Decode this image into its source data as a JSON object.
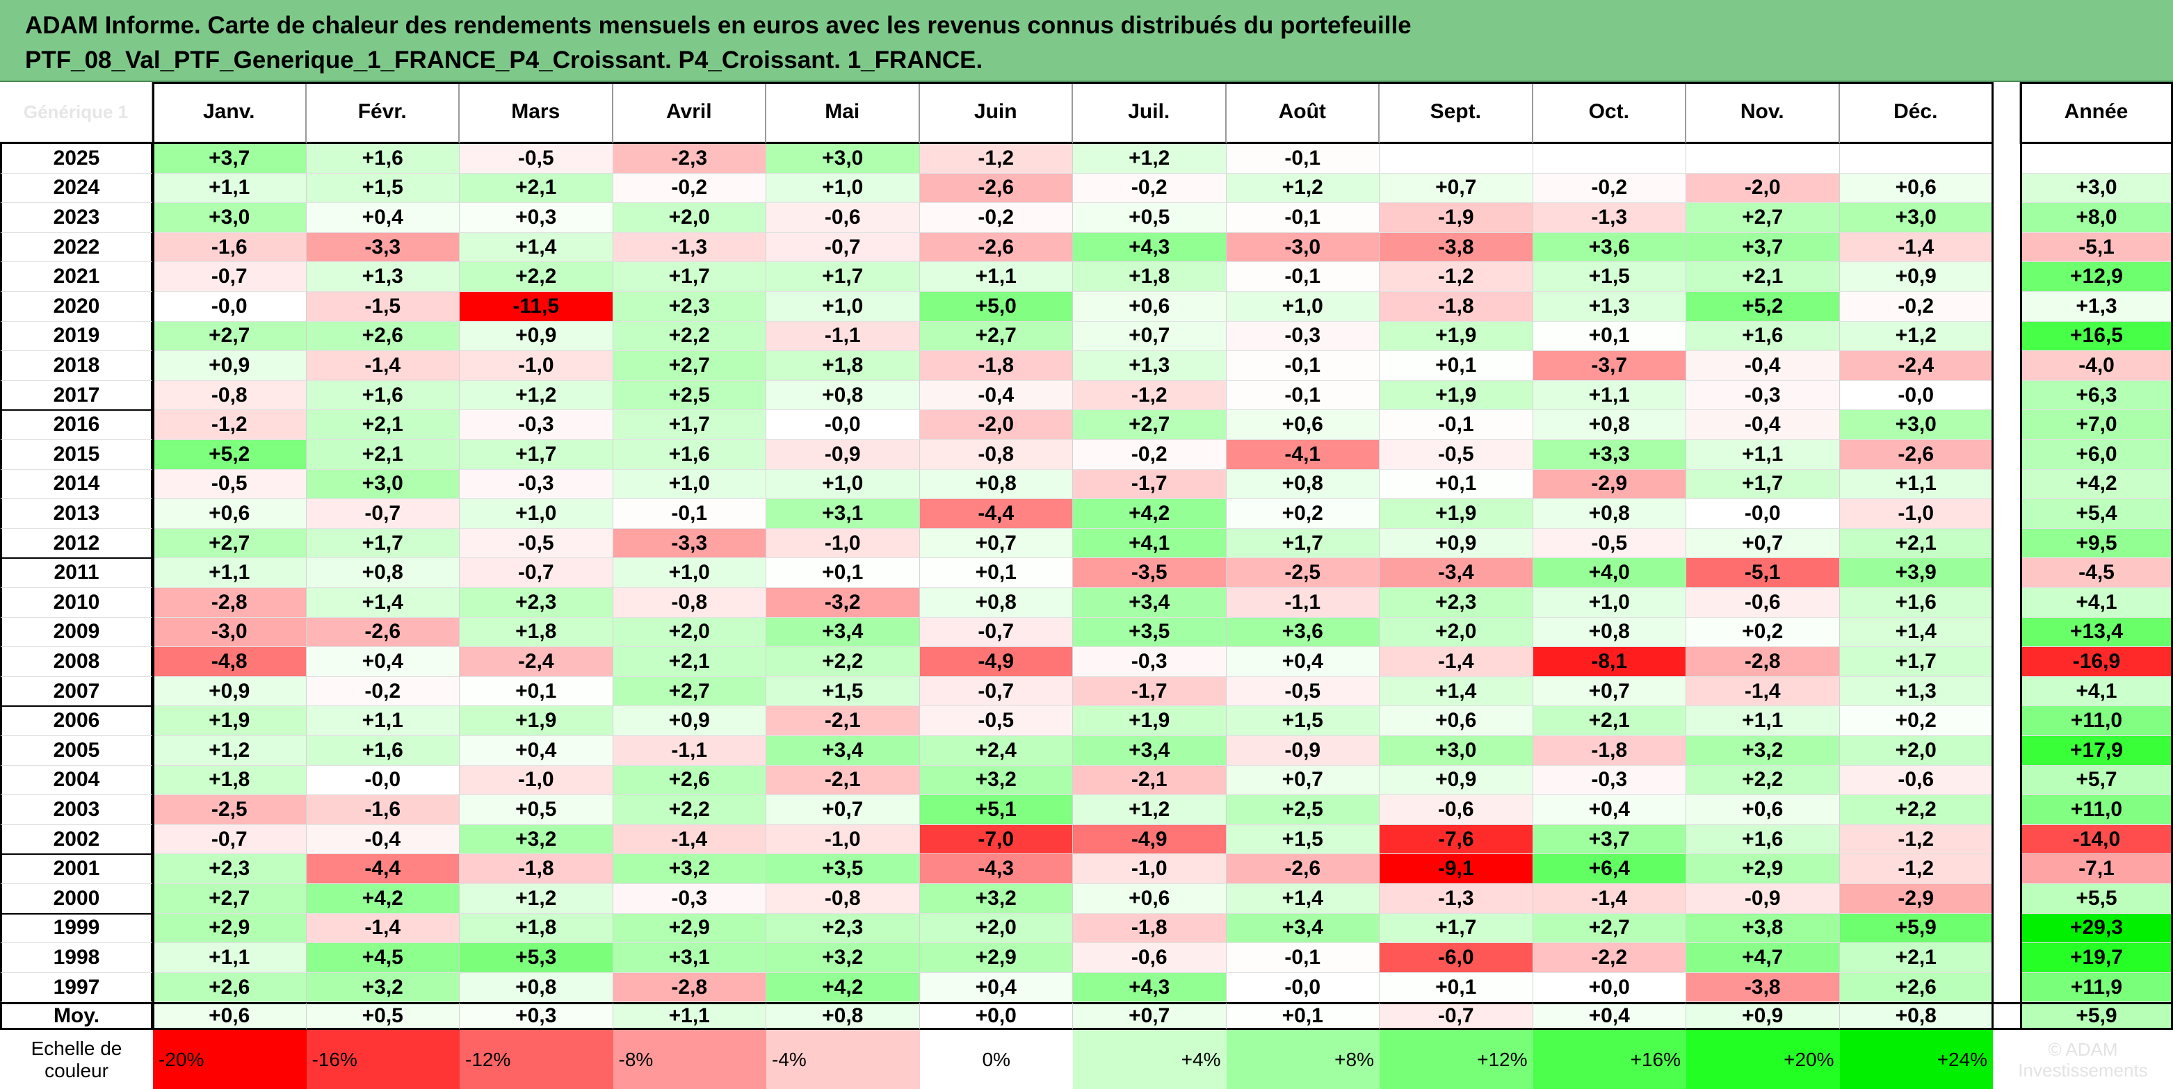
{
  "title": {
    "line1": "ADAM Informe. Carte de chaleur des rendements mensuels en euros avec les revenus connus distribués du portefeuille",
    "line2": "PTF_08_Val_PTF_Generique_1_FRANCE_P4_Croissant. P4_Croissant. 1_FRANCE."
  },
  "corner_ghost_text": "Générique 1",
  "chart_data": {
    "type": "heatmap",
    "title": "ADAM Informe. Carte de chaleur des rendements mensuels en euros avec les revenus connus distribués du portefeuille PTF_08_Val_PTF_Generique_1_FRANCE_P4_Croissant. P4_Croissant. 1_FRANCE.",
    "columns": [
      "Janv.",
      "Févr.",
      "Mars",
      "Avril",
      "Mai",
      "Juin",
      "Juil.",
      "Août",
      "Sept.",
      "Oct.",
      "Nov.",
      "Déc."
    ],
    "year_column_label": "Année",
    "rows": [
      {
        "year": "2025",
        "values": [
          "+3,7",
          "+1,6",
          "-0,5",
          "-2,3",
          "+3,0",
          "-1,2",
          "+1,2",
          "-0,1",
          "",
          "",
          "",
          ""
        ],
        "annual": ""
      },
      {
        "year": "2024",
        "values": [
          "+1,1",
          "+1,5",
          "+2,1",
          "-0,2",
          "+1,0",
          "-2,6",
          "-0,2",
          "+1,2",
          "+0,7",
          "-0,2",
          "-2,0",
          "+0,6"
        ],
        "annual": "+3,0"
      },
      {
        "year": "2023",
        "values": [
          "+3,0",
          "+0,4",
          "+0,3",
          "+2,0",
          "-0,6",
          "-0,2",
          "+0,5",
          "-0,1",
          "-1,9",
          "-1,3",
          "+2,7",
          "+3,0"
        ],
        "annual": "+8,0"
      },
      {
        "year": "2022",
        "values": [
          "-1,6",
          "-3,3",
          "+1,4",
          "-1,3",
          "-0,7",
          "-2,6",
          "+4,3",
          "-3,0",
          "-3,8",
          "+3,6",
          "+3,7",
          "-1,4"
        ],
        "annual": "-5,1"
      },
      {
        "year": "2021",
        "values": [
          "-0,7",
          "+1,3",
          "+2,2",
          "+1,7",
          "+1,7",
          "+1,1",
          "+1,8",
          "-0,1",
          "-1,2",
          "+1,5",
          "+2,1",
          "+0,9"
        ],
        "annual": "+12,9"
      },
      {
        "year": "2020",
        "values": [
          "-0,0",
          "-1,5",
          "-11,5",
          "+2,3",
          "+1,0",
          "+5,0",
          "+0,6",
          "+1,0",
          "-1,8",
          "+1,3",
          "+5,2",
          "-0,2"
        ],
        "annual": "+1,3"
      },
      {
        "year": "2019",
        "values": [
          "+2,7",
          "+2,6",
          "+0,9",
          "+2,2",
          "-1,1",
          "+2,7",
          "+0,7",
          "-0,3",
          "+1,9",
          "+0,1",
          "+1,6",
          "+1,2"
        ],
        "annual": "+16,5"
      },
      {
        "year": "2018",
        "values": [
          "+0,9",
          "-1,4",
          "-1,0",
          "+2,7",
          "+1,8",
          "-1,8",
          "+1,3",
          "-0,1",
          "+0,1",
          "-3,7",
          "-0,4",
          "-2,4"
        ],
        "annual": "-4,0"
      },
      {
        "year": "2017",
        "values": [
          "-0,8",
          "+1,6",
          "+1,2",
          "+2,5",
          "+0,8",
          "-0,4",
          "-1,2",
          "-0,1",
          "+1,9",
          "+1,1",
          "-0,3",
          "-0,0"
        ],
        "annual": "+6,3"
      },
      {
        "year": "2016",
        "values": [
          "-1,2",
          "+2,1",
          "-0,3",
          "+1,7",
          "-0,0",
          "-2,0",
          "+2,7",
          "+0,6",
          "-0,1",
          "+0,8",
          "-0,4",
          "+3,0"
        ],
        "annual": "+7,0"
      },
      {
        "year": "2015",
        "values": [
          "+5,2",
          "+2,1",
          "+1,7",
          "+1,6",
          "-0,9",
          "-0,8",
          "-0,2",
          "-4,1",
          "-0,5",
          "+3,3",
          "+1,1",
          "-2,6"
        ],
        "annual": "+6,0"
      },
      {
        "year": "2014",
        "values": [
          "-0,5",
          "+3,0",
          "-0,3",
          "+1,0",
          "+1,0",
          "+0,8",
          "-1,7",
          "+0,8",
          "+0,1",
          "-2,9",
          "+1,7",
          "+1,1"
        ],
        "annual": "+4,2"
      },
      {
        "year": "2013",
        "values": [
          "+0,6",
          "-0,7",
          "+1,0",
          "-0,1",
          "+3,1",
          "-4,4",
          "+4,2",
          "+0,2",
          "+1,9",
          "+0,8",
          "-0,0",
          "-1,0"
        ],
        "annual": "+5,4"
      },
      {
        "year": "2012",
        "values": [
          "+2,7",
          "+1,7",
          "-0,5",
          "-3,3",
          "-1,0",
          "+0,7",
          "+4,1",
          "+1,7",
          "+0,9",
          "-0,5",
          "+0,7",
          "+2,1"
        ],
        "annual": "+9,5"
      },
      {
        "year": "2011",
        "values": [
          "+1,1",
          "+0,8",
          "-0,7",
          "+1,0",
          "+0,1",
          "+0,1",
          "-3,5",
          "-2,5",
          "-3,4",
          "+4,0",
          "-5,1",
          "+3,9"
        ],
        "annual": "-4,5"
      },
      {
        "year": "2010",
        "values": [
          "-2,8",
          "+1,4",
          "+2,3",
          "-0,8",
          "-3,2",
          "+0,8",
          "+3,4",
          "-1,1",
          "+2,3",
          "+1,0",
          "-0,6",
          "+1,6"
        ],
        "annual": "+4,1"
      },
      {
        "year": "2009",
        "values": [
          "-3,0",
          "-2,6",
          "+1,8",
          "+2,0",
          "+3,4",
          "-0,7",
          "+3,5",
          "+3,6",
          "+2,0",
          "+0,8",
          "+0,2",
          "+1,4"
        ],
        "annual": "+13,4"
      },
      {
        "year": "2008",
        "values": [
          "-4,8",
          "+0,4",
          "-2,4",
          "+2,1",
          "+2,2",
          "-4,9",
          "-0,3",
          "+0,4",
          "-1,4",
          "-8,1",
          "-2,8",
          "+1,7"
        ],
        "annual": "-16,9"
      },
      {
        "year": "2007",
        "values": [
          "+0,9",
          "-0,2",
          "+0,1",
          "+2,7",
          "+1,5",
          "-0,7",
          "-1,7",
          "-0,5",
          "+1,4",
          "+0,7",
          "-1,4",
          "+1,3"
        ],
        "annual": "+4,1"
      },
      {
        "year": "2006",
        "values": [
          "+1,9",
          "+1,1",
          "+1,9",
          "+0,9",
          "-2,1",
          "-0,5",
          "+1,9",
          "+1,5",
          "+0,6",
          "+2,1",
          "+1,1",
          "+0,2"
        ],
        "annual": "+11,0"
      },
      {
        "year": "2005",
        "values": [
          "+1,2",
          "+1,6",
          "+0,4",
          "-1,1",
          "+3,4",
          "+2,4",
          "+3,4",
          "-0,9",
          "+3,0",
          "-1,8",
          "+3,2",
          "+2,0"
        ],
        "annual": "+17,9"
      },
      {
        "year": "2004",
        "values": [
          "+1,8",
          "-0,0",
          "-1,0",
          "+2,6",
          "-2,1",
          "+3,2",
          "-2,1",
          "+0,7",
          "+0,9",
          "-0,3",
          "+2,2",
          "-0,6"
        ],
        "annual": "+5,7"
      },
      {
        "year": "2003",
        "values": [
          "-2,5",
          "-1,6",
          "+0,5",
          "+2,2",
          "+0,7",
          "+5,1",
          "+1,2",
          "+2,5",
          "-0,6",
          "+0,4",
          "+0,6",
          "+2,2"
        ],
        "annual": "+11,0"
      },
      {
        "year": "2002",
        "values": [
          "-0,7",
          "-0,4",
          "+3,2",
          "-1,4",
          "-1,0",
          "-7,0",
          "-4,9",
          "+1,5",
          "-7,6",
          "+3,7",
          "+1,6",
          "-1,2"
        ],
        "annual": "-14,0"
      },
      {
        "year": "2001",
        "values": [
          "+2,3",
          "-4,4",
          "-1,8",
          "+3,2",
          "+3,5",
          "-4,3",
          "-1,0",
          "-2,6",
          "-9,1",
          "+6,4",
          "+2,9",
          "-1,2"
        ],
        "annual": "-7,1"
      },
      {
        "year": "2000",
        "values": [
          "+2,7",
          "+4,2",
          "+1,2",
          "-0,3",
          "-0,8",
          "+3,2",
          "+0,6",
          "+1,4",
          "-1,3",
          "-1,4",
          "-0,9",
          "-2,9"
        ],
        "annual": "+5,5"
      },
      {
        "year": "1999",
        "values": [
          "+2,9",
          "-1,4",
          "+1,8",
          "+2,9",
          "+2,3",
          "+2,0",
          "-1,8",
          "+3,4",
          "+1,7",
          "+2,7",
          "+3,8",
          "+5,9"
        ],
        "annual": "+29,3"
      },
      {
        "year": "1998",
        "values": [
          "+1,1",
          "+4,5",
          "+5,3",
          "+3,1",
          "+3,2",
          "+2,9",
          "-0,6",
          "-0,1",
          "-6,0",
          "-2,2",
          "+4,7",
          "+2,1"
        ],
        "annual": "+19,7"
      },
      {
        "year": "1997",
        "values": [
          "+2,6",
          "+3,2",
          "+0,8",
          "-2,8",
          "+4,2",
          "+0,4",
          "+4,3",
          "-0,0",
          "+0,1",
          "+0,0",
          "-3,8",
          "+2,6"
        ],
        "annual": "+11,9"
      }
    ],
    "average_row": {
      "label": "Moy.",
      "values": [
        "+0,6",
        "+0,5",
        "+0,3",
        "+1,1",
        "+0,8",
        "+0,0",
        "+0,7",
        "+0,1",
        "-0,7",
        "+0,4",
        "+0,9",
        "+0,8"
      ],
      "annual": "+5,9"
    },
    "color_scale": {
      "label": "Echelle de couleur",
      "stops": [
        {
          "label": "-20%",
          "value": -20,
          "color": "#ff0000"
        },
        {
          "label": "-16%",
          "value": -16,
          "color": "#ff3535"
        },
        {
          "label": "-12%",
          "value": -12,
          "color": "#ff6464"
        },
        {
          "label": "-8%",
          "value": -8,
          "color": "#ff9999"
        },
        {
          "label": "-4%",
          "value": -4,
          "color": "#ffcccc"
        },
        {
          "label": "0%",
          "value": 0,
          "color": "#ffffff"
        },
        {
          "label": "+4%",
          "value": 4,
          "color": "#ccffcc"
        },
        {
          "label": "+8%",
          "value": 8,
          "color": "#a0ffa0"
        },
        {
          "label": "+12%",
          "value": 12,
          "color": "#78ff78"
        },
        {
          "label": "+16%",
          "value": 16,
          "color": "#4cff4c"
        },
        {
          "label": "+20%",
          "value": 20,
          "color": "#22ff22"
        },
        {
          "label": "+24%",
          "value": 24,
          "color": "#00f000"
        }
      ],
      "ghost_text": "© ADAM\nInvestissements"
    }
  }
}
